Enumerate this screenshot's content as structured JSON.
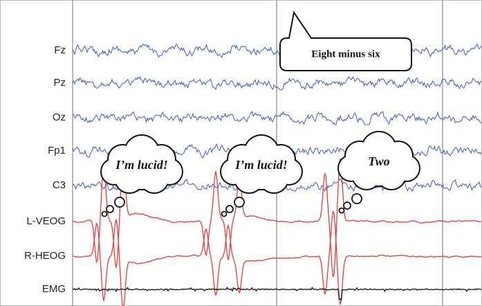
{
  "channels": [
    "Fz",
    "Pz",
    "Oz",
    "Fp1",
    "C3",
    "L-VEOG",
    "R-HEOG",
    "EMG"
  ],
  "speech": {
    "text": "Eight minus six"
  },
  "thoughts": [
    {
      "text": "I’m lucid!"
    },
    {
      "text": "I’m lucid!"
    },
    {
      "text": "Two"
    }
  ]
}
